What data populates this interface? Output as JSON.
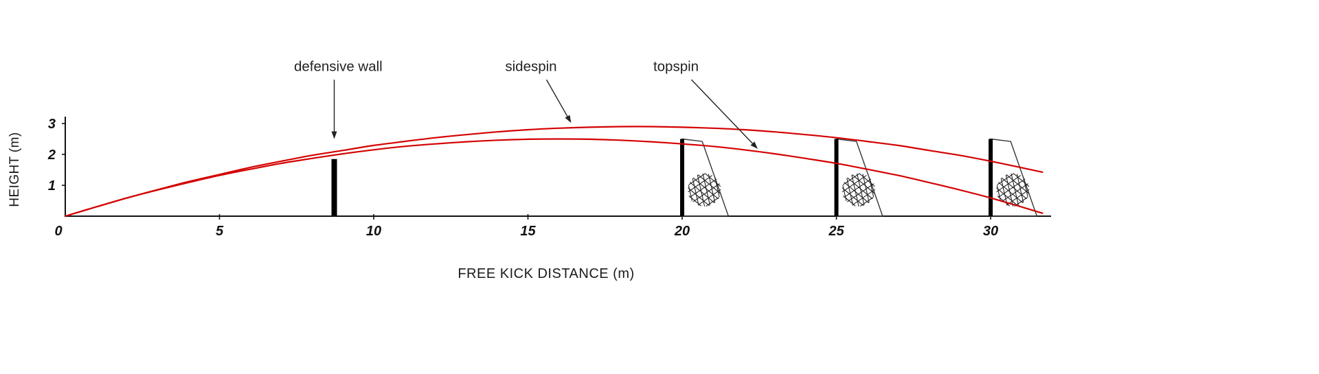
{
  "figure": {
    "background": "#ffffff"
  },
  "chart_data": {
    "type": "line",
    "title": "",
    "xlabel": "FREE KICK DISTANCE (m)",
    "ylabel": "HEIGHT (m)",
    "xlim": [
      0,
      31.9
    ],
    "ylim": [
      0,
      3.2
    ],
    "grid": false,
    "legend": "none (labels annotated with arrows)",
    "x_ticks": [
      0,
      5,
      10,
      15,
      20,
      25,
      30
    ],
    "y_ticks": [
      1,
      2,
      3
    ],
    "curve_color": "#d40000",
    "axis_color": "#111111",
    "x": [
      0,
      1,
      2,
      3,
      4,
      5,
      6,
      7,
      8,
      9,
      10,
      11,
      12,
      13,
      14,
      15,
      16,
      17,
      18,
      19,
      20,
      21,
      22,
      23,
      24,
      25,
      26,
      27,
      28,
      29,
      30,
      31,
      31.7
    ],
    "series": [
      {
        "name": "sidespin",
        "values": [
          0,
          0.3,
          0.59,
          0.86,
          1.12,
          1.35,
          1.58,
          1.78,
          1.97,
          2.13,
          2.29,
          2.42,
          2.54,
          2.64,
          2.73,
          2.8,
          2.85,
          2.88,
          2.9,
          2.9,
          2.88,
          2.85,
          2.8,
          2.73,
          2.64,
          2.54,
          2.42,
          2.29,
          2.13,
          1.97,
          1.78,
          1.57,
          1.42
        ]
      },
      {
        "name": "topspin",
        "values": [
          0,
          0.3,
          0.59,
          0.85,
          1.09,
          1.32,
          1.52,
          1.71,
          1.87,
          2.02,
          2.15,
          2.26,
          2.34,
          2.41,
          2.46,
          2.49,
          2.5,
          2.49,
          2.46,
          2.41,
          2.34,
          2.26,
          2.15,
          2.02,
          1.87,
          1.71,
          1.52,
          1.32,
          1.09,
          0.85,
          0.59,
          0.3,
          0.09
        ]
      }
    ],
    "defensive_wall": {
      "x": 8.72,
      "height": 1.85
    },
    "goals": [
      {
        "name": "goal-20m",
        "distance": 20
      },
      {
        "name": "goal-25m",
        "distance": 25
      },
      {
        "name": "goal-30m",
        "distance": 30
      }
    ],
    "goal_shape": {
      "post_height": 2.5,
      "top_back_x": 0.65,
      "top_back_height": 2.42,
      "base_depth": 1.5,
      "net_center_x": 0.72,
      "net_center_y": 0.85
    },
    "annotations": [
      {
        "id": "defensive-wall",
        "label": "defensive wall",
        "text_x": 8.85,
        "text_y": 4.7,
        "arrow": {
          "x1": 8.72,
          "y1": 4.42,
          "x2": 8.72,
          "y2": 2.5
        }
      },
      {
        "id": "sidespin",
        "label": "sidespin",
        "text_x": 15.1,
        "text_y": 4.7,
        "arrow": {
          "x1": 15.6,
          "y1": 4.42,
          "x2": 16.4,
          "y2": 3.02
        }
      },
      {
        "id": "topspin",
        "label": "topspin",
        "text_x": 19.8,
        "text_y": 4.7,
        "arrow": {
          "x1": 20.3,
          "y1": 4.42,
          "x2": 22.45,
          "y2": 2.18
        }
      }
    ]
  }
}
